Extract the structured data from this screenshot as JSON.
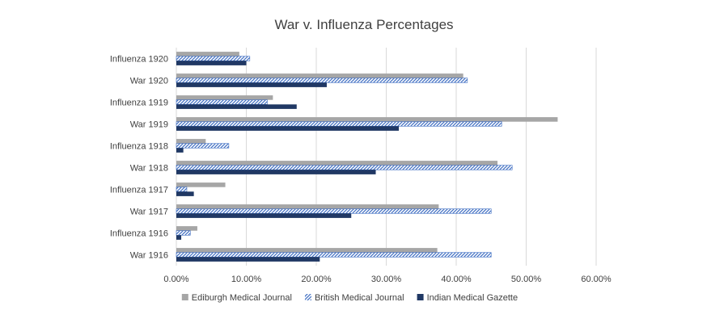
{
  "chart_data": {
    "type": "bar",
    "orientation": "horizontal",
    "title": "War v. Influenza Percentages",
    "categories": [
      "Influenza 1920",
      "War 1920",
      "Influenza 1919",
      "War 1919",
      "Influenza 1918",
      "War 1918",
      "Influenza 1917",
      "War 1917",
      "Influenza 1916",
      "War 1916"
    ],
    "series": [
      {
        "name": "Ediburgh Medical Journal",
        "color": "#a6a6a6",
        "pattern": "solid",
        "values": [
          9.0,
          41.0,
          13.8,
          54.5,
          4.2,
          45.9,
          7.0,
          37.5,
          3.0,
          37.3
        ]
      },
      {
        "name": "British Medical Journal",
        "color": "#4472c4",
        "pattern": "diagonal-hatch",
        "values": [
          10.5,
          41.6,
          13.0,
          46.5,
          7.5,
          48.0,
          1.5,
          45.0,
          2.0,
          45.0
        ]
      },
      {
        "name": "Indian Medical Gazette",
        "color": "#203864",
        "pattern": "solid",
        "values": [
          10.0,
          21.5,
          17.2,
          31.8,
          1.0,
          28.5,
          2.5,
          25.0,
          0.7,
          20.5
        ]
      }
    ],
    "xticks": [
      "0.00%",
      "10.00%",
      "20.00%",
      "30.00%",
      "40.00%",
      "50.00%",
      "60.00%"
    ],
    "xlim": [
      0,
      60
    ],
    "grid": true,
    "legend_position": "bottom"
  }
}
